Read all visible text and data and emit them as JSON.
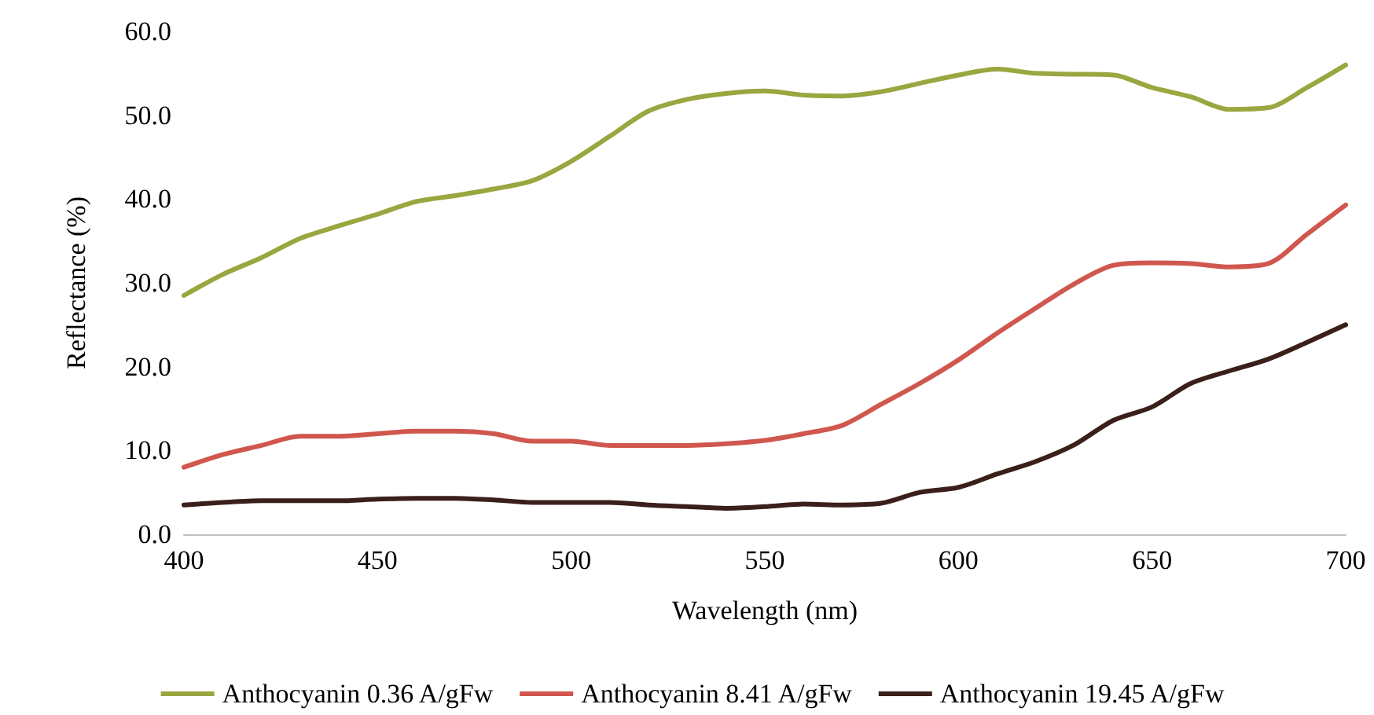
{
  "chart_data": {
    "type": "line",
    "xlabel": "Wavelength (nm)",
    "ylabel": "Reflectance (%)",
    "x": [
      400,
      410,
      420,
      430,
      440,
      450,
      460,
      470,
      480,
      490,
      500,
      510,
      520,
      530,
      540,
      550,
      560,
      570,
      580,
      590,
      600,
      610,
      620,
      630,
      640,
      650,
      660,
      670,
      680,
      690,
      700
    ],
    "series": [
      {
        "name": "Anthocyanin 0.36 A/gFw",
        "color": "#9aa63f",
        "values": [
          28.5,
          31,
          33,
          35.3,
          36.8,
          38.2,
          39.7,
          40.4,
          41.2,
          42.2,
          44.5,
          47.5,
          50.5,
          51.9,
          52.6,
          52.9,
          52.4,
          52.3,
          52.8,
          53.8,
          54.8,
          55.5,
          55,
          54.9,
          54.8,
          53.3,
          52.2,
          50.7,
          50.9,
          53.3,
          56
        ]
      },
      {
        "name": "Anthocyanin 8.41 A/gFw",
        "color": "#d0574e",
        "values": [
          8,
          9.5,
          10.6,
          11.7,
          11.7,
          12,
          12.3,
          12.3,
          12,
          11.1,
          11.1,
          10.6,
          10.6,
          10.6,
          10.8,
          11.2,
          12,
          13,
          15.5,
          18,
          20.8,
          24,
          27,
          29.9,
          32.1,
          32.4,
          32.3,
          31.9,
          32.3,
          35.8,
          39.3
        ]
      },
      {
        "name": "Anthocyanin 19.45 A/gFw",
        "color": "#3b1f1a",
        "values": [
          3.5,
          3.8,
          4,
          4,
          4,
          4.2,
          4.3,
          4.3,
          4.1,
          3.8,
          3.8,
          3.8,
          3.5,
          3.3,
          3.1,
          3.3,
          3.6,
          3.5,
          3.7,
          5,
          5.6,
          7.2,
          8.7,
          10.7,
          13.6,
          15.2,
          18,
          19.5,
          20.9,
          22.9,
          25
        ]
      }
    ],
    "xlim": [
      400,
      700
    ],
    "xticks": [
      400,
      450,
      500,
      550,
      600,
      650,
      700
    ],
    "ylim": [
      0,
      60
    ],
    "yticks": [
      {
        "value": 0,
        "label": "0.0"
      },
      {
        "value": 10,
        "label": "10.0"
      },
      {
        "value": 20,
        "label": "20.0"
      },
      {
        "value": 30,
        "label": "30.0"
      },
      {
        "value": 40,
        "label": "40.0"
      },
      {
        "value": 50,
        "label": "50.0"
      },
      {
        "value": 60,
        "label": "60.0"
      }
    ],
    "grid": false,
    "legend": "bottom",
    "marker": "none",
    "line_style": "solid"
  }
}
